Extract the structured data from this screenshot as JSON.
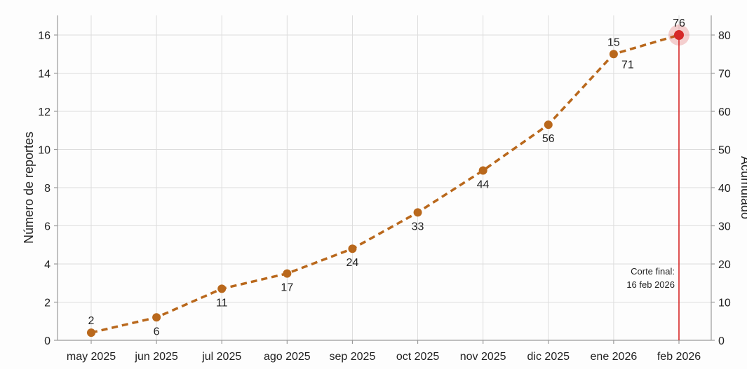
{
  "chart_data": {
    "type": "line",
    "categories": [
      "may 2025",
      "jun 2025",
      "jul 2025",
      "ago 2025",
      "sep 2025",
      "oct 2025",
      "nov 2025",
      "dic 2025",
      "ene 2026",
      "feb 2026"
    ],
    "ylabel": "Número de reportes",
    "y2label": "Acumulado",
    "ylim": [
      0,
      16
    ],
    "y2lim": [
      0,
      80
    ],
    "yticks": [
      0,
      2,
      4,
      6,
      8,
      10,
      12,
      14,
      16
    ],
    "y2ticks": [
      0,
      10,
      20,
      30,
      40,
      50,
      60,
      70,
      80
    ],
    "series": [
      {
        "values": [
          0.4,
          1.2,
          2.7,
          3.5,
          4.8,
          6.7,
          8.9,
          11.3,
          15.0,
          16.0
        ],
        "cumulative_labels": [
          2,
          6,
          11,
          17,
          24,
          33,
          44,
          56,
          71,
          76
        ],
        "color": "#b9681c",
        "highlight_color": "#d62728"
      }
    ],
    "annotations": [
      {
        "text": "15"
      },
      {
        "text": "Corte final:"
      },
      {
        "text": "16 feb 2026"
      }
    ],
    "grid": true
  }
}
